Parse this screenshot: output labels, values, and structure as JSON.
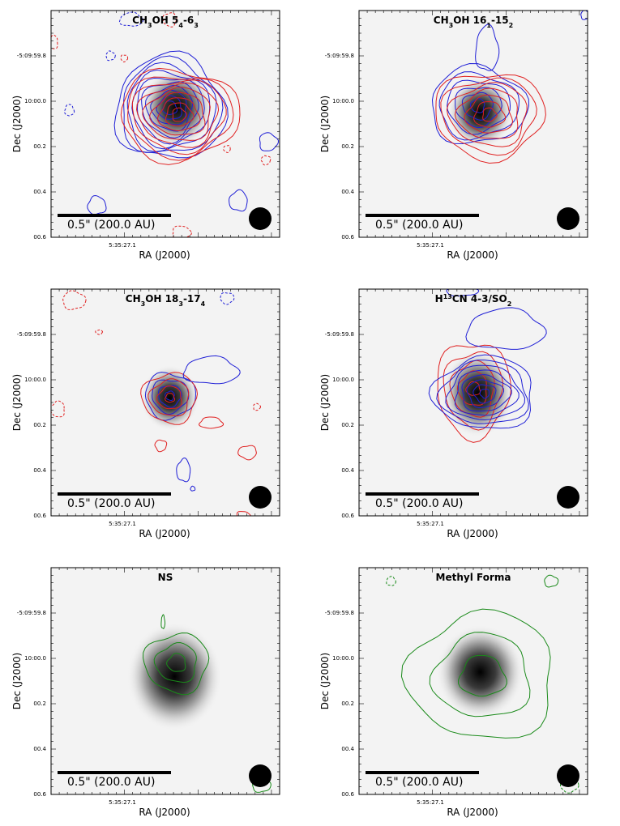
{
  "colors": {
    "blue": "#1f1fd6",
    "red": "#e02020",
    "green": "#1a8a1a",
    "frame": "#000000",
    "beam": "#000000"
  },
  "chart_data": [
    {
      "type": "contour",
      "title": "CH3OH 54-63",
      "title_parts": [
        [
          "CH",
          ""
        ],
        [
          "3",
          "sub"
        ],
        [
          "OH 5",
          ""
        ],
        [
          "4",
          "sub"
        ],
        [
          "-6",
          ""
        ],
        [
          "3",
          "sub"
        ]
      ],
      "xlabel": "RA (J2000)",
      "ylabel": "Dec (J2000)",
      "x_ticks": [
        "5:35:27.1"
      ],
      "y_ticks": [
        "-5:09:59.8",
        "10:00.0",
        "00.2",
        "00.4",
        "00.6"
      ],
      "scalebar_label": "0.5\" (200.0 AU)",
      "image": {
        "peak_x": 0.55,
        "peak_y": 0.43,
        "width": 0.1,
        "height": 0.11
      },
      "contour_sets": [
        {
          "color": "blue",
          "style": "solid",
          "center_x": 0.52,
          "center_y": 0.43,
          "rx_max": 0.24,
          "ry_max": 0.23,
          "rx_min": 0.03,
          "ry_min": 0.03,
          "levels": 10
        },
        {
          "color": "red",
          "style": "solid",
          "center_x": 0.56,
          "center_y": 0.46,
          "rx_max": 0.26,
          "ry_max": 0.2,
          "rx_min": 0.03,
          "ry_min": 0.03,
          "levels": 9
        }
      ],
      "blobs": [
        {
          "color": "blue",
          "style": "dashed",
          "x": 0.35,
          "y": 0.04,
          "rx": 0.05,
          "ry": 0.03
        },
        {
          "color": "blue",
          "style": "dashed",
          "x": 0.26,
          "y": 0.2,
          "rx": 0.02,
          "ry": 0.02
        },
        {
          "color": "red",
          "style": "dashed",
          "x": 0.32,
          "y": 0.21,
          "rx": 0.015,
          "ry": 0.015
        },
        {
          "color": "red",
          "style": "dashed",
          "x": 0.52,
          "y": 0.04,
          "rx": 0.03,
          "ry": 0.03
        },
        {
          "color": "red",
          "style": "dashed",
          "x": 0.01,
          "y": 0.14,
          "rx": 0.02,
          "ry": 0.03
        },
        {
          "color": "blue",
          "style": "dashed",
          "x": 0.08,
          "y": 0.44,
          "rx": 0.02,
          "ry": 0.025
        },
        {
          "color": "blue",
          "style": "solid",
          "x": 0.95,
          "y": 0.58,
          "rx": 0.04,
          "ry": 0.04
        },
        {
          "color": "red",
          "style": "dashed",
          "x": 0.94,
          "y": 0.66,
          "rx": 0.02,
          "ry": 0.02
        },
        {
          "color": "red",
          "style": "dashed",
          "x": 0.77,
          "y": 0.61,
          "rx": 0.015,
          "ry": 0.015
        },
        {
          "color": "blue",
          "style": "solid",
          "x": 0.82,
          "y": 0.84,
          "rx": 0.04,
          "ry": 0.045
        },
        {
          "color": "blue",
          "style": "solid",
          "x": 0.2,
          "y": 0.86,
          "rx": 0.04,
          "ry": 0.04
        },
        {
          "color": "red",
          "style": "dashed",
          "x": 0.57,
          "y": 0.98,
          "rx": 0.04,
          "ry": 0.03
        }
      ]
    },
    {
      "type": "contour",
      "title": "CH3OH 161-152",
      "title_parts": [
        [
          "CH",
          ""
        ],
        [
          "3",
          "sub"
        ],
        [
          "OH 16",
          ""
        ],
        [
          "1",
          "sub"
        ],
        [
          "-15",
          ""
        ],
        [
          "2",
          "sub"
        ]
      ],
      "xlabel": "RA (J2000)",
      "ylabel": "Dec (J2000)",
      "x_ticks": [
        "5:35:27.1"
      ],
      "y_ticks": [
        "-5:09:59.8",
        "10:00.0",
        "00.2",
        "00.4",
        "00.6"
      ],
      "scalebar_label": "0.5\" (200.0 AU)",
      "image": {
        "peak_x": 0.53,
        "peak_y": 0.45,
        "width": 0.09,
        "height": 0.1
      },
      "contour_sets": [
        {
          "color": "blue",
          "style": "solid",
          "center_x": 0.52,
          "center_y": 0.42,
          "rx_max": 0.21,
          "ry_max": 0.17,
          "rx_min": 0.03,
          "ry_min": 0.03,
          "levels": 6
        },
        {
          "color": "red",
          "style": "solid",
          "center_x": 0.57,
          "center_y": 0.46,
          "rx_max": 0.24,
          "ry_max": 0.19,
          "rx_min": 0.03,
          "ry_min": 0.03,
          "levels": 7
        }
      ],
      "blobs": [
        {
          "color": "blue",
          "style": "solid",
          "x": 0.56,
          "y": 0.17,
          "rx": 0.05,
          "ry": 0.1
        },
        {
          "color": "blue",
          "style": "solid",
          "x": 0.99,
          "y": 0.02,
          "rx": 0.02,
          "ry": 0.02
        }
      ]
    },
    {
      "type": "contour",
      "title": "CH3OH 183-174",
      "title_parts": [
        [
          "CH",
          ""
        ],
        [
          "3",
          "sub"
        ],
        [
          "OH 18",
          ""
        ],
        [
          "3",
          "sub"
        ],
        [
          "-17",
          ""
        ],
        [
          "4",
          "sub"
        ]
      ],
      "xlabel": "RA (J2000)",
      "ylabel": "Dec (J2000)",
      "x_ticks": [
        "5:35:27.1"
      ],
      "y_ticks": [
        "-5:09:59.8",
        "10:00.0",
        "00.2",
        "00.4",
        "00.6"
      ],
      "scalebar_label": "0.5\" (200.0 AU)",
      "image": {
        "peak_x": 0.52,
        "peak_y": 0.48,
        "width": 0.08,
        "height": 0.09
      },
      "contour_sets": [
        {
          "color": "blue",
          "style": "solid",
          "center_x": 0.52,
          "center_y": 0.47,
          "rx_max": 0.11,
          "ry_max": 0.1,
          "rx_min": 0.02,
          "ry_min": 0.02,
          "levels": 4
        },
        {
          "color": "red",
          "style": "solid",
          "center_x": 0.52,
          "center_y": 0.48,
          "rx_max": 0.12,
          "ry_max": 0.11,
          "rx_min": 0.02,
          "ry_min": 0.02,
          "levels": 4
        }
      ],
      "blobs": [
        {
          "color": "blue",
          "style": "solid",
          "x": 0.7,
          "y": 0.36,
          "rx": 0.12,
          "ry": 0.06
        },
        {
          "color": "red",
          "style": "dashed",
          "x": 0.1,
          "y": 0.05,
          "rx": 0.05,
          "ry": 0.04
        },
        {
          "color": "blue",
          "style": "dashed",
          "x": 0.77,
          "y": 0.04,
          "rx": 0.03,
          "ry": 0.025
        },
        {
          "color": "red",
          "style": "dashed",
          "x": 0.21,
          "y": 0.19,
          "rx": 0.015,
          "ry": 0.01
        },
        {
          "color": "red",
          "style": "dashed",
          "x": 0.03,
          "y": 0.53,
          "rx": 0.03,
          "ry": 0.035
        },
        {
          "color": "red",
          "style": "solid",
          "x": 0.7,
          "y": 0.59,
          "rx": 0.05,
          "ry": 0.025
        },
        {
          "color": "red",
          "style": "dashed",
          "x": 0.9,
          "y": 0.52,
          "rx": 0.015,
          "ry": 0.015
        },
        {
          "color": "red",
          "style": "solid",
          "x": 0.48,
          "y": 0.69,
          "rx": 0.025,
          "ry": 0.025
        },
        {
          "color": "red",
          "style": "solid",
          "x": 0.86,
          "y": 0.72,
          "rx": 0.04,
          "ry": 0.03
        },
        {
          "color": "blue",
          "style": "solid",
          "x": 0.58,
          "y": 0.8,
          "rx": 0.03,
          "ry": 0.05
        },
        {
          "color": "blue",
          "style": "solid",
          "x": 0.62,
          "y": 0.88,
          "rx": 0.01,
          "ry": 0.01
        },
        {
          "color": "red",
          "style": "solid",
          "x": 0.84,
          "y": 1.0,
          "rx": 0.03,
          "ry": 0.02
        }
      ]
    },
    {
      "type": "contour",
      "title": "H13CN 4-3/SO2",
      "title_parts": [
        [
          "H",
          ""
        ],
        [
          "13",
          "sup"
        ],
        [
          "CN 4-3/SO",
          ""
        ],
        [
          "2",
          "sub"
        ]
      ],
      "xlabel": "RA (J2000)",
      "ylabel": "Dec (J2000)",
      "x_ticks": [
        "5:35:27.1"
      ],
      "y_ticks": [
        "-5:09:59.8",
        "10:00.0",
        "00.2",
        "00.4",
        "00.6"
      ],
      "scalebar_label": "0.5\" (200.0 AU)",
      "image": {
        "peak_x": 0.52,
        "peak_y": 0.46,
        "width": 0.1,
        "height": 0.12
      },
      "contour_sets": [
        {
          "color": "red",
          "style": "solid",
          "center_x": 0.5,
          "center_y": 0.44,
          "rx_max": 0.16,
          "ry_max": 0.21,
          "rx_min": 0.03,
          "ry_min": 0.03,
          "levels": 5
        },
        {
          "color": "blue",
          "style": "solid",
          "center_x": 0.55,
          "center_y": 0.46,
          "rx_max": 0.22,
          "ry_max": 0.16,
          "rx_min": 0.02,
          "ry_min": 0.02,
          "levels": 8
        }
      ],
      "blobs": [
        {
          "color": "blue",
          "style": "solid",
          "x": 0.64,
          "y": 0.18,
          "rx": 0.17,
          "ry": 0.09
        },
        {
          "color": "blue",
          "style": "solid",
          "x": 0.45,
          "y": 0.01,
          "rx": 0.07,
          "ry": 0.02
        }
      ]
    },
    {
      "type": "contour",
      "title": "NS",
      "title_parts": [
        [
          "NS",
          ""
        ]
      ],
      "xlabel": "RA (J2000)",
      "ylabel": "Dec (J2000)",
      "x_ticks": [
        "5:35:27.1"
      ],
      "y_ticks": [
        "-5:09:59.8",
        "10:00.0",
        "00.2",
        "00.4",
        "00.6"
      ],
      "scalebar_label": "0.5\" (200.0 AU)",
      "image": {
        "peak_x": 0.54,
        "peak_y": 0.48,
        "width": 0.13,
        "height": 0.15
      },
      "contour_sets": [
        {
          "color": "green",
          "style": "solid",
          "center_x": 0.55,
          "center_y": 0.42,
          "rx_max": 0.14,
          "ry_max": 0.13,
          "rx_min": 0.04,
          "ry_min": 0.04,
          "levels": 3
        }
      ],
      "blobs": [
        {
          "color": "green",
          "style": "solid",
          "x": 0.49,
          "y": 0.24,
          "rx": 0.008,
          "ry": 0.03
        },
        {
          "color": "green",
          "style": "solid",
          "x": 0.92,
          "y": 0.96,
          "rx": 0.04,
          "ry": 0.03
        }
      ]
    },
    {
      "type": "contour",
      "title": "Methyl Forma",
      "title_parts": [
        [
          "Methyl Forma",
          ""
        ]
      ],
      "xlabel": "RA (J2000)",
      "ylabel": "Dec (J2000)",
      "x_ticks": [
        "5:35:27.1"
      ],
      "y_ticks": [
        "-5:09:59.8",
        "10:00.0",
        "00.2",
        "00.4",
        "00.6"
      ],
      "scalebar_label": "0.5\" (200.0 AU)",
      "image": {
        "peak_x": 0.53,
        "peak_y": 0.46,
        "width": 0.12,
        "height": 0.13
      },
      "contour_sets": [
        {
          "color": "green",
          "style": "solid",
          "center_x": 0.54,
          "center_y": 0.48,
          "rx_max": 0.32,
          "ry_max": 0.28,
          "rx_min": 0.1,
          "ry_min": 0.09,
          "levels": 3
        }
      ],
      "blobs": [
        {
          "color": "green",
          "style": "dashed",
          "x": 0.14,
          "y": 0.06,
          "rx": 0.02,
          "ry": 0.02
        },
        {
          "color": "green",
          "style": "solid",
          "x": 0.84,
          "y": 0.06,
          "rx": 0.03,
          "ry": 0.025
        },
        {
          "color": "green",
          "style": "dashed",
          "x": 0.92,
          "y": 0.96,
          "rx": 0.04,
          "ry": 0.03
        }
      ]
    }
  ]
}
